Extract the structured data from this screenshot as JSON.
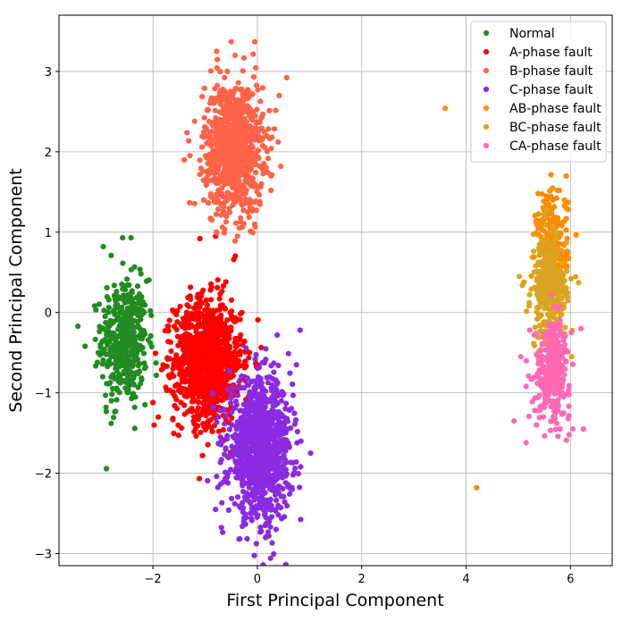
{
  "chart_data": {
    "type": "scatter",
    "title": "",
    "xlabel": "First Principal Component",
    "ylabel": "Second Principal Component",
    "xlim": [
      -3.8,
      6.8
    ],
    "ylim": [
      -3.15,
      3.7
    ],
    "xticks": [
      -2,
      0,
      2,
      4,
      6
    ],
    "xtick_labels": [
      "−2",
      "0",
      "2",
      "4",
      "6"
    ],
    "yticks": [
      -3,
      -2,
      -1,
      0,
      1,
      2,
      3
    ],
    "ytick_labels": [
      "−3",
      "−2",
      "−1",
      "0",
      "1",
      "2",
      "3"
    ],
    "grid": true,
    "legend_position": "top-right",
    "series": [
      {
        "name": "Normal",
        "color": "#228B22",
        "cluster": {
          "center": [
            -2.55,
            -0.35
          ],
          "std": [
            0.22,
            0.38
          ],
          "n": 450
        },
        "points": [
          [
            -2.58,
            0.93
          ],
          [
            -2.42,
            0.93
          ],
          [
            -2.95,
            0.82
          ],
          [
            -2.8,
            0.71
          ],
          [
            -2.05,
            0.02
          ],
          [
            -2.05,
            -0.38
          ],
          [
            -3.3,
            -0.42
          ],
          [
            -2.9,
            -1.18
          ],
          [
            -2.8,
            -1.38
          ],
          [
            -2.35,
            -1.18
          ]
        ]
      },
      {
        "name": "A-phase fault",
        "color": "#FF0000",
        "cluster": {
          "center": [
            -0.95,
            -0.6
          ],
          "std": [
            0.32,
            0.38
          ],
          "n": 1100
        },
        "points": [
          [
            -0.8,
            0.95
          ],
          [
            -0.45,
            0.66
          ],
          [
            -1.1,
            0.92
          ],
          [
            -2.0,
            -1.12
          ],
          [
            -1.05,
            -1.78
          ],
          [
            -0.62,
            -1.58
          ],
          [
            -1.72,
            -0.58
          ],
          [
            -0.35,
            -0.92
          ]
        ]
      },
      {
        "name": "B-phase fault",
        "color": "#FF6347",
        "cluster": {
          "center": [
            -0.45,
            2.05
          ],
          "std": [
            0.28,
            0.4
          ],
          "n": 950
        },
        "points": [
          [
            -0.5,
            3.37
          ],
          [
            -0.05,
            3.37
          ],
          [
            -0.78,
            3.25
          ],
          [
            -1.2,
            2.38
          ],
          [
            -0.05,
            1.1
          ],
          [
            -0.38,
            0.95
          ],
          [
            0.42,
            2.7
          ],
          [
            0.45,
            1.82
          ],
          [
            -1.4,
            1.9
          ]
        ]
      },
      {
        "name": "C-phase fault",
        "color": "#8A2BE2",
        "cluster": {
          "center": [
            0.05,
            -1.7
          ],
          "std": [
            0.3,
            0.42
          ],
          "n": 1100
        },
        "points": [
          [
            0.82,
            -0.22
          ],
          [
            0.38,
            -0.28
          ],
          [
            0.75,
            -0.65
          ],
          [
            -0.35,
            -2.82
          ],
          [
            0.22,
            -2.78
          ],
          [
            1.02,
            -1.75
          ],
          [
            -0.8,
            -2.45
          ]
        ]
      },
      {
        "name": "AB-phase fault",
        "color": "#FF8C00",
        "cluster": {
          "center": [
            5.65,
            0.85
          ],
          "std": [
            0.15,
            0.32
          ],
          "n": 250
        },
        "points": [
          [
            3.6,
            2.54
          ],
          [
            4.2,
            -2.18
          ],
          [
            5.92,
            1.7
          ],
          [
            5.38,
            1.48
          ],
          [
            5.75,
            1.52
          ]
        ]
      },
      {
        "name": "BC-phase fault",
        "color": "#DAA520",
        "cluster": {
          "center": [
            5.6,
            0.25
          ],
          "std": [
            0.17,
            0.35
          ],
          "n": 280
        },
        "points": [
          [
            5.55,
            1.28
          ],
          [
            5.02,
            0.45
          ],
          [
            5.68,
            -1.35
          ],
          [
            6.02,
            -0.55
          ]
        ]
      },
      {
        "name": "CA-phase fault",
        "color": "#FF69B4",
        "cluster": {
          "center": [
            5.65,
            -0.7
          ],
          "std": [
            0.17,
            0.3
          ],
          "n": 320
        },
        "points": [
          [
            6.25,
            -1.45
          ],
          [
            5.15,
            -1.62
          ],
          [
            4.92,
            -1.35
          ],
          [
            6.2,
            -0.2
          ],
          [
            5.35,
            -1.4
          ],
          [
            5.05,
            -0.55
          ]
        ]
      }
    ]
  }
}
